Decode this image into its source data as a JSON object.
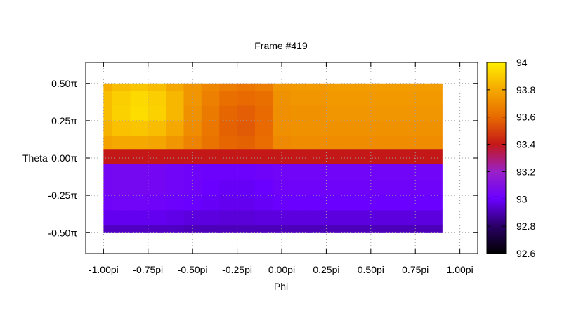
{
  "chart_data": {
    "type": "heatmap",
    "title": "Frame #419",
    "xlabel": "Phi",
    "ylabel": "Theta",
    "xlim": [
      -1.1,
      1.1
    ],
    "ylim": [
      -0.64,
      0.64
    ],
    "grid": true,
    "x_ticks": [
      {
        "value": -1.0,
        "label": "-1.00pi"
      },
      {
        "value": -0.75,
        "label": "-0.75pi"
      },
      {
        "value": -0.5,
        "label": "-0.50pi"
      },
      {
        "value": -0.25,
        "label": "-0.25pi"
      },
      {
        "value": 0.0,
        "label": "0.00pi"
      },
      {
        "value": 0.25,
        "label": "0.25pi"
      },
      {
        "value": 0.5,
        "label": "0.50pi"
      },
      {
        "value": 0.75,
        "label": "0.75pi"
      },
      {
        "value": 1.0,
        "label": "1.00pi"
      }
    ],
    "y_ticks": [
      {
        "value": 0.5,
        "label": "0.50π"
      },
      {
        "value": 0.25,
        "label": "0.25π"
      },
      {
        "value": 0.0,
        "label": "0.00π"
      },
      {
        "value": -0.25,
        "label": "-0.25π"
      },
      {
        "value": -0.5,
        "label": "-0.50π"
      }
    ],
    "colorbar": {
      "range": [
        92.6,
        94.0
      ],
      "placement": "right",
      "ticks": [
        {
          "value": 94.0,
          "label": "94"
        },
        {
          "value": 93.8,
          "label": "93.8"
        },
        {
          "value": 93.6,
          "label": "93.6"
        },
        {
          "value": 93.4,
          "label": "93.4"
        },
        {
          "value": 93.2,
          "label": "93.2"
        },
        {
          "value": 93.0,
          "label": "93"
        },
        {
          "value": 92.8,
          "label": "92.8"
        },
        {
          "value": 92.6,
          "label": "92.6"
        }
      ],
      "colors": [
        "#000000",
        "#2a0066",
        "#6a00ff",
        "#9a20c8",
        "#c41818",
        "#e86a00",
        "#f5a800",
        "#ffee00"
      ]
    },
    "x": [
      -1.0,
      -0.9,
      -0.8,
      -0.7,
      -0.6,
      -0.5,
      -0.4,
      -0.3,
      -0.2,
      -0.1,
      0.0,
      0.1,
      0.2,
      0.3,
      0.4,
      0.5,
      0.6,
      0.7,
      0.8,
      0.9
    ],
    "y": [
      0.5,
      0.4,
      0.3,
      0.2,
      0.1,
      0.02,
      -0.1,
      -0.2,
      -0.3,
      -0.4,
      -0.5
    ],
    "z": [
      [
        93.82,
        93.86,
        93.88,
        93.86,
        93.8,
        93.74,
        93.69,
        93.66,
        93.64,
        93.66,
        93.74,
        93.75,
        93.75,
        93.76,
        93.76,
        93.76,
        93.76,
        93.76,
        93.76,
        93.76
      ],
      [
        93.86,
        93.91,
        93.94,
        93.91,
        93.84,
        93.74,
        93.67,
        93.62,
        93.6,
        93.62,
        93.73,
        93.74,
        93.74,
        93.75,
        93.75,
        93.75,
        93.75,
        93.75,
        93.75,
        93.75
      ],
      [
        93.86,
        93.92,
        93.95,
        93.92,
        93.84,
        93.73,
        93.65,
        93.59,
        93.57,
        93.6,
        93.72,
        93.73,
        93.73,
        93.74,
        93.74,
        93.74,
        93.74,
        93.74,
        93.74,
        93.74
      ],
      [
        93.83,
        93.87,
        93.88,
        93.86,
        93.8,
        93.71,
        93.64,
        93.58,
        93.56,
        93.6,
        93.72,
        93.73,
        93.73,
        93.73,
        93.73,
        93.73,
        93.73,
        93.73,
        93.73,
        93.73
      ],
      [
        93.78,
        93.8,
        93.8,
        93.79,
        93.74,
        93.68,
        93.63,
        93.59,
        93.58,
        93.61,
        93.7,
        93.71,
        93.71,
        93.71,
        93.71,
        93.71,
        93.71,
        93.71,
        93.71,
        93.71
      ],
      [
        93.4,
        93.4,
        93.4,
        93.4,
        93.4,
        93.4,
        93.4,
        93.4,
        93.4,
        93.4,
        93.4,
        93.4,
        93.4,
        93.4,
        93.4,
        93.4,
        93.4,
        93.4,
        93.4,
        93.4
      ],
      [
        93.04,
        93.05,
        93.05,
        93.04,
        93.03,
        93.02,
        93.01,
        93.01,
        93.01,
        93.02,
        93.03,
        93.03,
        93.03,
        93.03,
        93.03,
        93.03,
        93.03,
        93.03,
        93.03,
        93.03
      ],
      [
        93.04,
        93.05,
        93.05,
        93.04,
        93.03,
        93.02,
        93.0,
        92.99,
        92.99,
        93.0,
        93.02,
        93.02,
        93.02,
        93.02,
        93.02,
        93.02,
        93.02,
        93.02,
        93.02,
        93.02
      ],
      [
        93.02,
        93.03,
        93.03,
        93.02,
        93.01,
        93.0,
        92.99,
        92.98,
        92.98,
        92.99,
        93.0,
        93.0,
        93.0,
        93.0,
        93.0,
        93.0,
        93.0,
        93.0,
        93.0,
        93.0
      ],
      [
        92.98,
        92.98,
        92.98,
        92.98,
        92.97,
        92.96,
        92.96,
        92.95,
        92.95,
        92.96,
        92.96,
        92.96,
        92.96,
        92.96,
        92.96,
        92.96,
        92.96,
        92.96,
        92.96,
        92.96
      ],
      [
        92.92,
        92.92,
        92.92,
        92.92,
        92.92,
        92.91,
        92.91,
        92.91,
        92.91,
        92.91,
        92.91,
        92.91,
        92.91,
        92.91,
        92.91,
        92.91,
        92.91,
        92.91,
        92.91,
        92.91
      ]
    ]
  }
}
